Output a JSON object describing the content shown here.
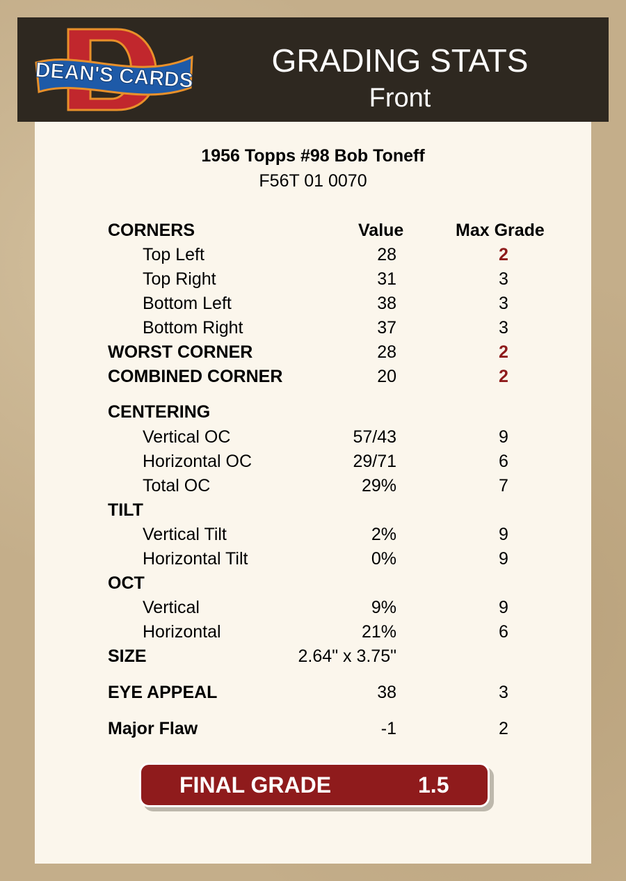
{
  "header": {
    "logo_text": "DEAN'S CARDS",
    "title": "GRADING STATS",
    "subtitle": "Front"
  },
  "card": {
    "name": "1956 Topps #98 Bob Toneff",
    "id": "F56T 01 0070"
  },
  "columns": {
    "value": "Value",
    "max_grade": "Max Grade"
  },
  "accent_color": "#8e1b1b",
  "rows": [
    {
      "label": "CORNERS",
      "style": "section"
    },
    {
      "label": "Top Left",
      "value": "28",
      "max": "2",
      "highlight": true
    },
    {
      "label": "Top Right",
      "value": "31",
      "max": "3"
    },
    {
      "label": "Bottom Left",
      "value": "38",
      "max": "3"
    },
    {
      "label": "Bottom Right",
      "value": "37",
      "max": "3"
    },
    {
      "label": "WORST CORNER",
      "style": "bold",
      "value": "28",
      "max": "2",
      "highlight": true
    },
    {
      "label": "COMBINED CORNER",
      "style": "bold",
      "value": "20",
      "max": "2",
      "highlight": true
    },
    {
      "label": "CENTERING",
      "style": "section"
    },
    {
      "label": "Vertical OC",
      "value": "57/43",
      "max": "9"
    },
    {
      "label": "Horizontal OC",
      "value": "29/71",
      "max": "6"
    },
    {
      "label": "Total OC",
      "value": "29%",
      "max": "7"
    },
    {
      "label": "TILT",
      "style": "section"
    },
    {
      "label": "Vertical Tilt",
      "value": "2%",
      "max": "9"
    },
    {
      "label": "Horizontal Tilt",
      "value": "0%",
      "max": "9"
    },
    {
      "label": "OCT",
      "style": "section"
    },
    {
      "label": "Vertical",
      "value": "9%",
      "max": "9"
    },
    {
      "label": "Horizontal",
      "value": "21%",
      "max": "6"
    },
    {
      "label": "SIZE",
      "style": "bold",
      "value": "2.64\" x 3.75\""
    },
    {
      "label": "EYE APPEAL",
      "style": "bold",
      "value": "38",
      "max": "3"
    },
    {
      "label": "Major Flaw",
      "style": "bold",
      "value": "-1",
      "max": "2"
    }
  ],
  "final": {
    "label": "FINAL GRADE",
    "value": "1.5"
  }
}
